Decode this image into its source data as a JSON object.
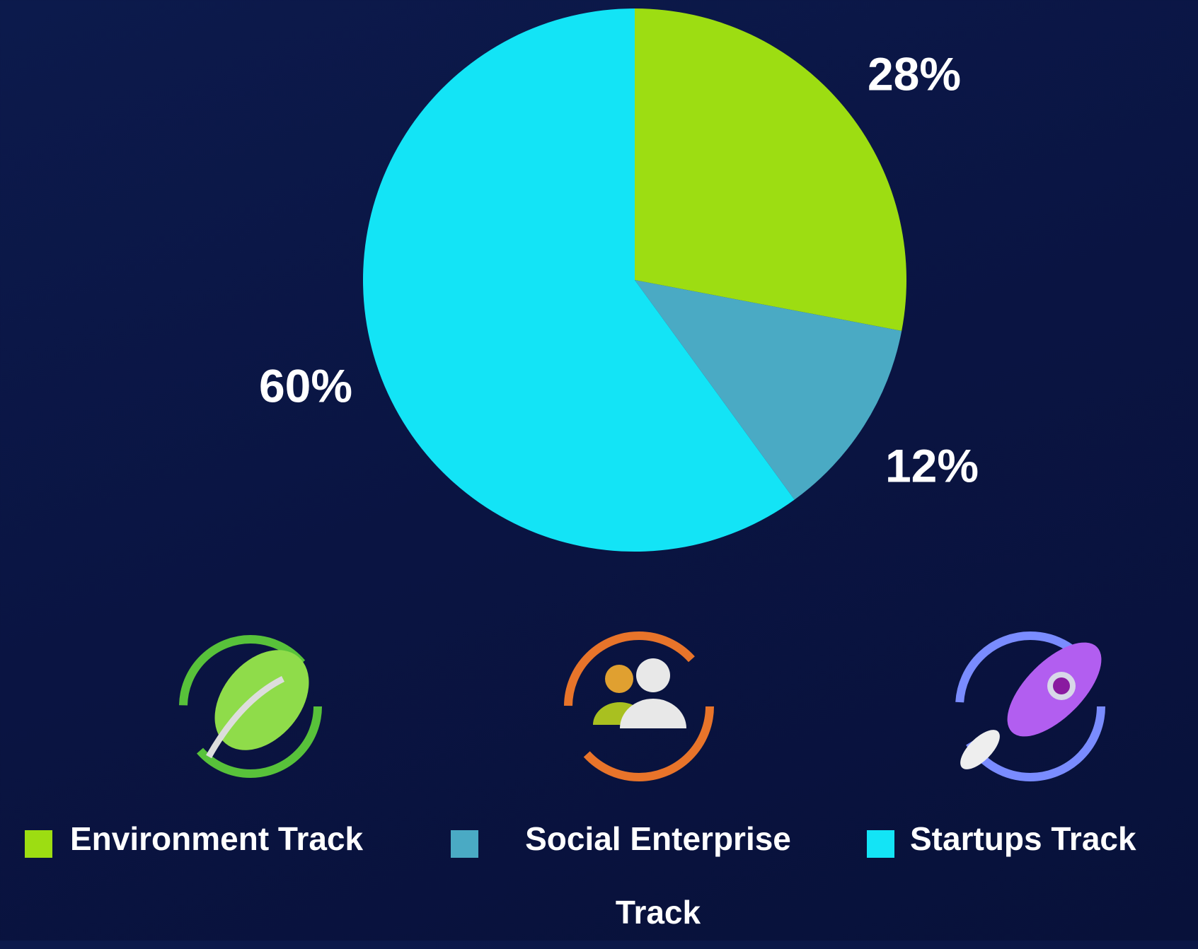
{
  "chart_data": {
    "type": "pie",
    "categories": [
      "Environment Track",
      "Social Enterprise Track",
      "Startups Track"
    ],
    "values": [
      28,
      12,
      60
    ],
    "value_labels": [
      "28%",
      "12%",
      "60%"
    ],
    "colors": [
      "#9ddd12",
      "#4aaac4",
      "#13e4f6"
    ]
  }
}
